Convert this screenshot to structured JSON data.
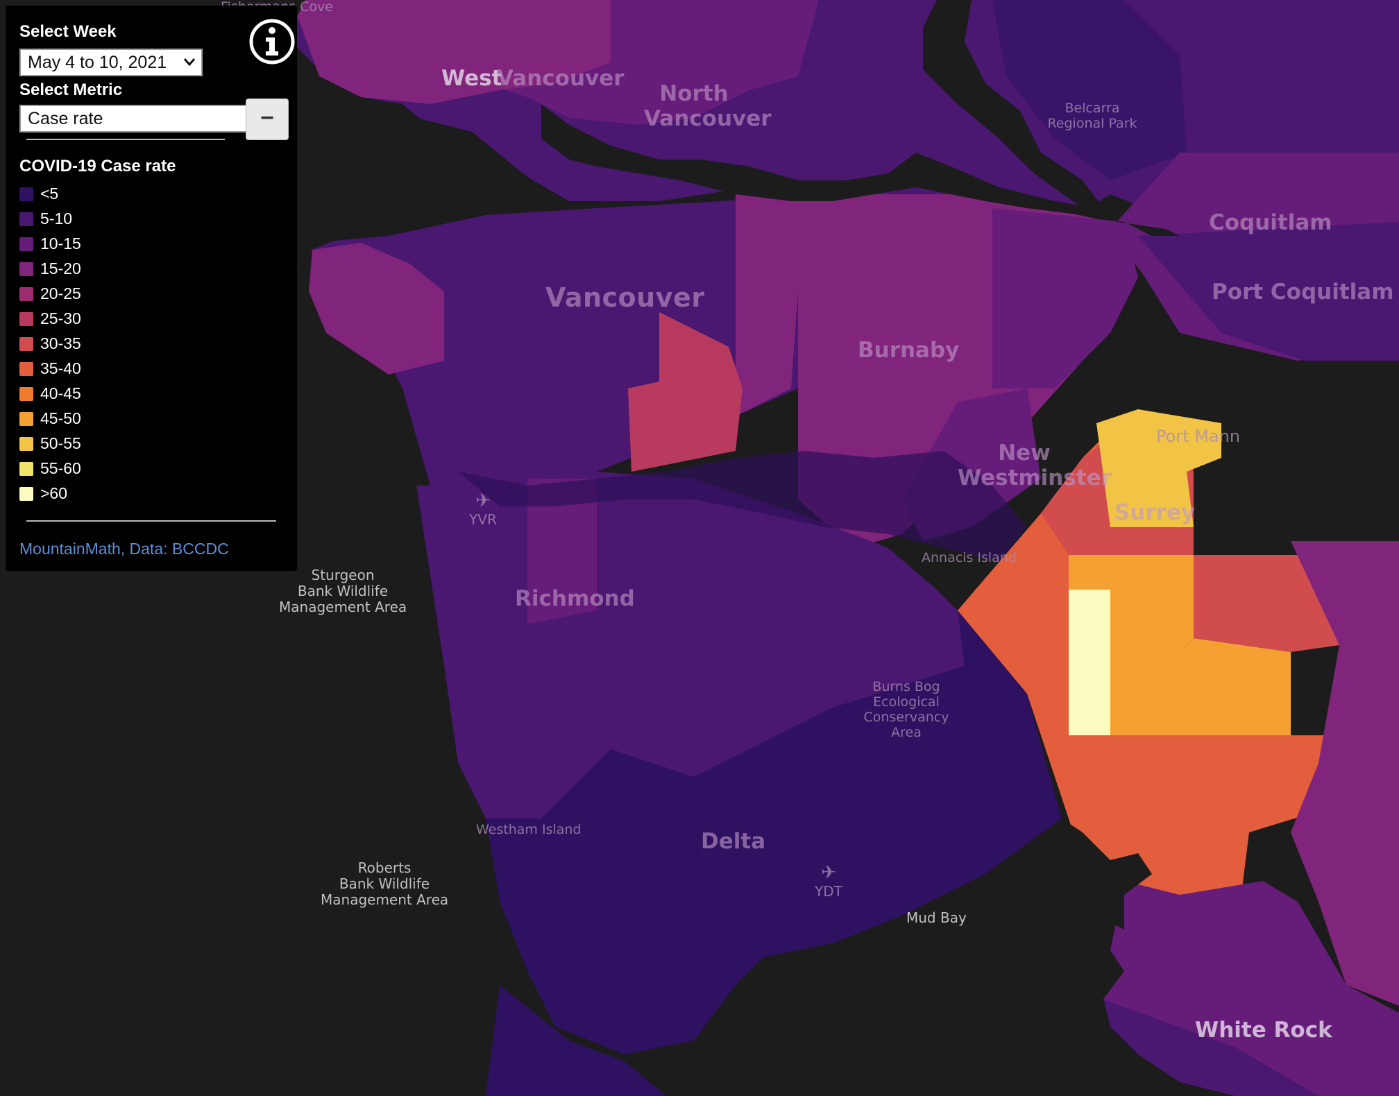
{
  "controls": {
    "week_label": "Select Week",
    "week_value": "May 4 to 10, 2021",
    "metric_label": "Select Metric",
    "metric_value": "Case rate",
    "collapse_symbol": "−",
    "info_icon": "info-icon"
  },
  "legend": {
    "title": "COVID-19 Case rate",
    "items": [
      {
        "label": "<5",
        "color": "#2e1160"
      },
      {
        "label": "5-10",
        "color": "#4a1771"
      },
      {
        "label": "10-15",
        "color": "#661c79"
      },
      {
        "label": "15-20",
        "color": "#80247c"
      },
      {
        "label": "20-25",
        "color": "#9d2d6f"
      },
      {
        "label": "25-30",
        "color": "#b83b5f"
      },
      {
        "label": "30-35",
        "color": "#d14c4d"
      },
      {
        "label": "35-40",
        "color": "#e35e3c"
      },
      {
        "label": "40-45",
        "color": "#ef7b2c"
      },
      {
        "label": "45-50",
        "color": "#f4a033"
      },
      {
        "label": "50-55",
        "color": "#f2c445"
      },
      {
        "label": "55-60",
        "color": "#f0e36a"
      },
      {
        "label": ">60",
        "color": "#fbfbbf"
      }
    ]
  },
  "attribution": "MountainMath, Data: BCCDC",
  "map_labels": {
    "fishermans_cove": "Fishermans Cove",
    "west_vancouver_a": "West",
    "west_vancouver_b": "Vancouver",
    "north_vancouver_1": "North",
    "north_vancouver_2": "Vancouver",
    "belcarra_1": "Belcarra",
    "belcarra_2": "Regional Park",
    "coquitlam": "Coquitlam",
    "port_coquitlam": "Port Coquitlam",
    "vancouver": "Vancouver",
    "burnaby": "Burnaby",
    "new_westminster_1": "New",
    "new_westminster_2": "Westminster",
    "port_mann": "Port Mann",
    "surrey": "Surrey",
    "yvr": "YVR",
    "richmond": "Richmond",
    "annacis_island": "Annacis Island",
    "sturgeon_1": "Sturgeon",
    "sturgeon_2": "Bank Wildlife",
    "sturgeon_3": "Management Area",
    "burns_bog_1": "Burns Bog",
    "burns_bog_2": "Ecological",
    "burns_bog_3": "Conservancy",
    "burns_bog_4": "Area",
    "westham_island": "Westham Island",
    "delta": "Delta",
    "ydt": "YDT",
    "roberts_1": "Roberts",
    "roberts_2": "Bank Wildlife",
    "roberts_3": "Management Area",
    "mud_bay": "Mud Bay",
    "white_rock": "White Rock"
  }
}
